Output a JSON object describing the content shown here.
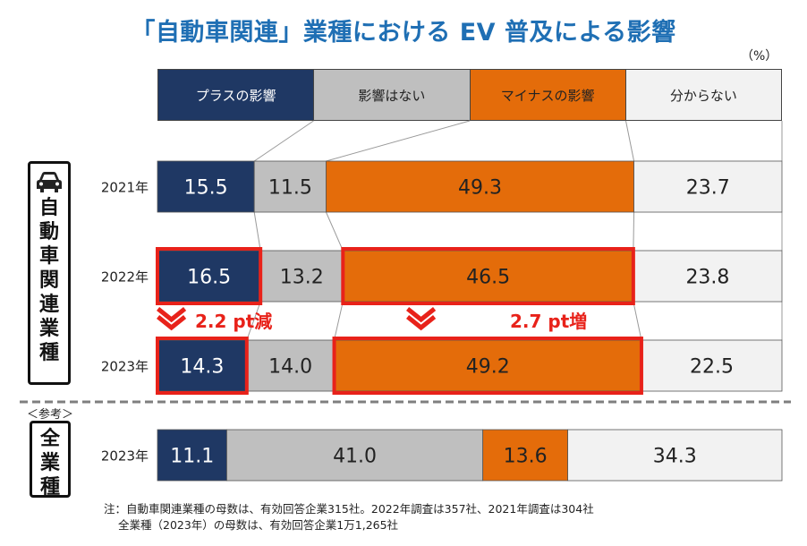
{
  "title": "「自動車関連」業種における EV 普及による影響",
  "unit": "（%）",
  "legend": [
    {
      "label": "プラスの影響",
      "color": "#1f3864",
      "text_color": "#ffffff"
    },
    {
      "label": "影響はない",
      "color": "#bfbfbf",
      "text_color": "#222222"
    },
    {
      "label": "マイナスの影響",
      "color": "#e46c0a",
      "text_color": "#222222"
    },
    {
      "label": "分からない",
      "color": "#f2f2f2",
      "text_color": "#222222"
    }
  ],
  "side_labels": {
    "auto_related": "自動車関連業種",
    "all_industries": "全業種",
    "reference": "＜参考＞"
  },
  "changes": [
    {
      "text": "2.2 pt減"
    },
    {
      "text": "2.7 pt増"
    }
  ],
  "notes": {
    "line1": "注：自動車関連業種の母数は、有効回答企業315社。2022年調査は357社、2021年調査は304社",
    "line2": "全業種（2023年）の母数は、有効回答企業1万1,265社"
  },
  "chart_data": {
    "type": "bar",
    "orientation": "horizontal",
    "stacked": "100%",
    "title": "「自動車関連」業種における EV 普及による影響",
    "categories": [
      "2021年",
      "2022年",
      "2023年",
      "2023年"
    ],
    "groups": [
      "自動車関連業種",
      "自動車関連業種",
      "自動車関連業種",
      "全業種"
    ],
    "series": [
      {
        "name": "プラスの影響",
        "values": [
          15.5,
          16.5,
          14.3,
          11.1
        ]
      },
      {
        "name": "影響はない",
        "values": [
          11.5,
          13.2,
          14.0,
          41.0
        ]
      },
      {
        "name": "マイナスの影響",
        "values": [
          49.3,
          46.5,
          49.2,
          13.6
        ]
      },
      {
        "name": "分からない",
        "values": [
          23.7,
          23.8,
          22.5,
          34.3
        ]
      }
    ],
    "highlighted": [
      {
        "row": 1,
        "series": 0
      },
      {
        "row": 2,
        "series": 0
      },
      {
        "row": 1,
        "series": 2
      },
      {
        "row": 2,
        "series": 2
      }
    ],
    "xlim": [
      0,
      100
    ],
    "ylabel": "%"
  }
}
